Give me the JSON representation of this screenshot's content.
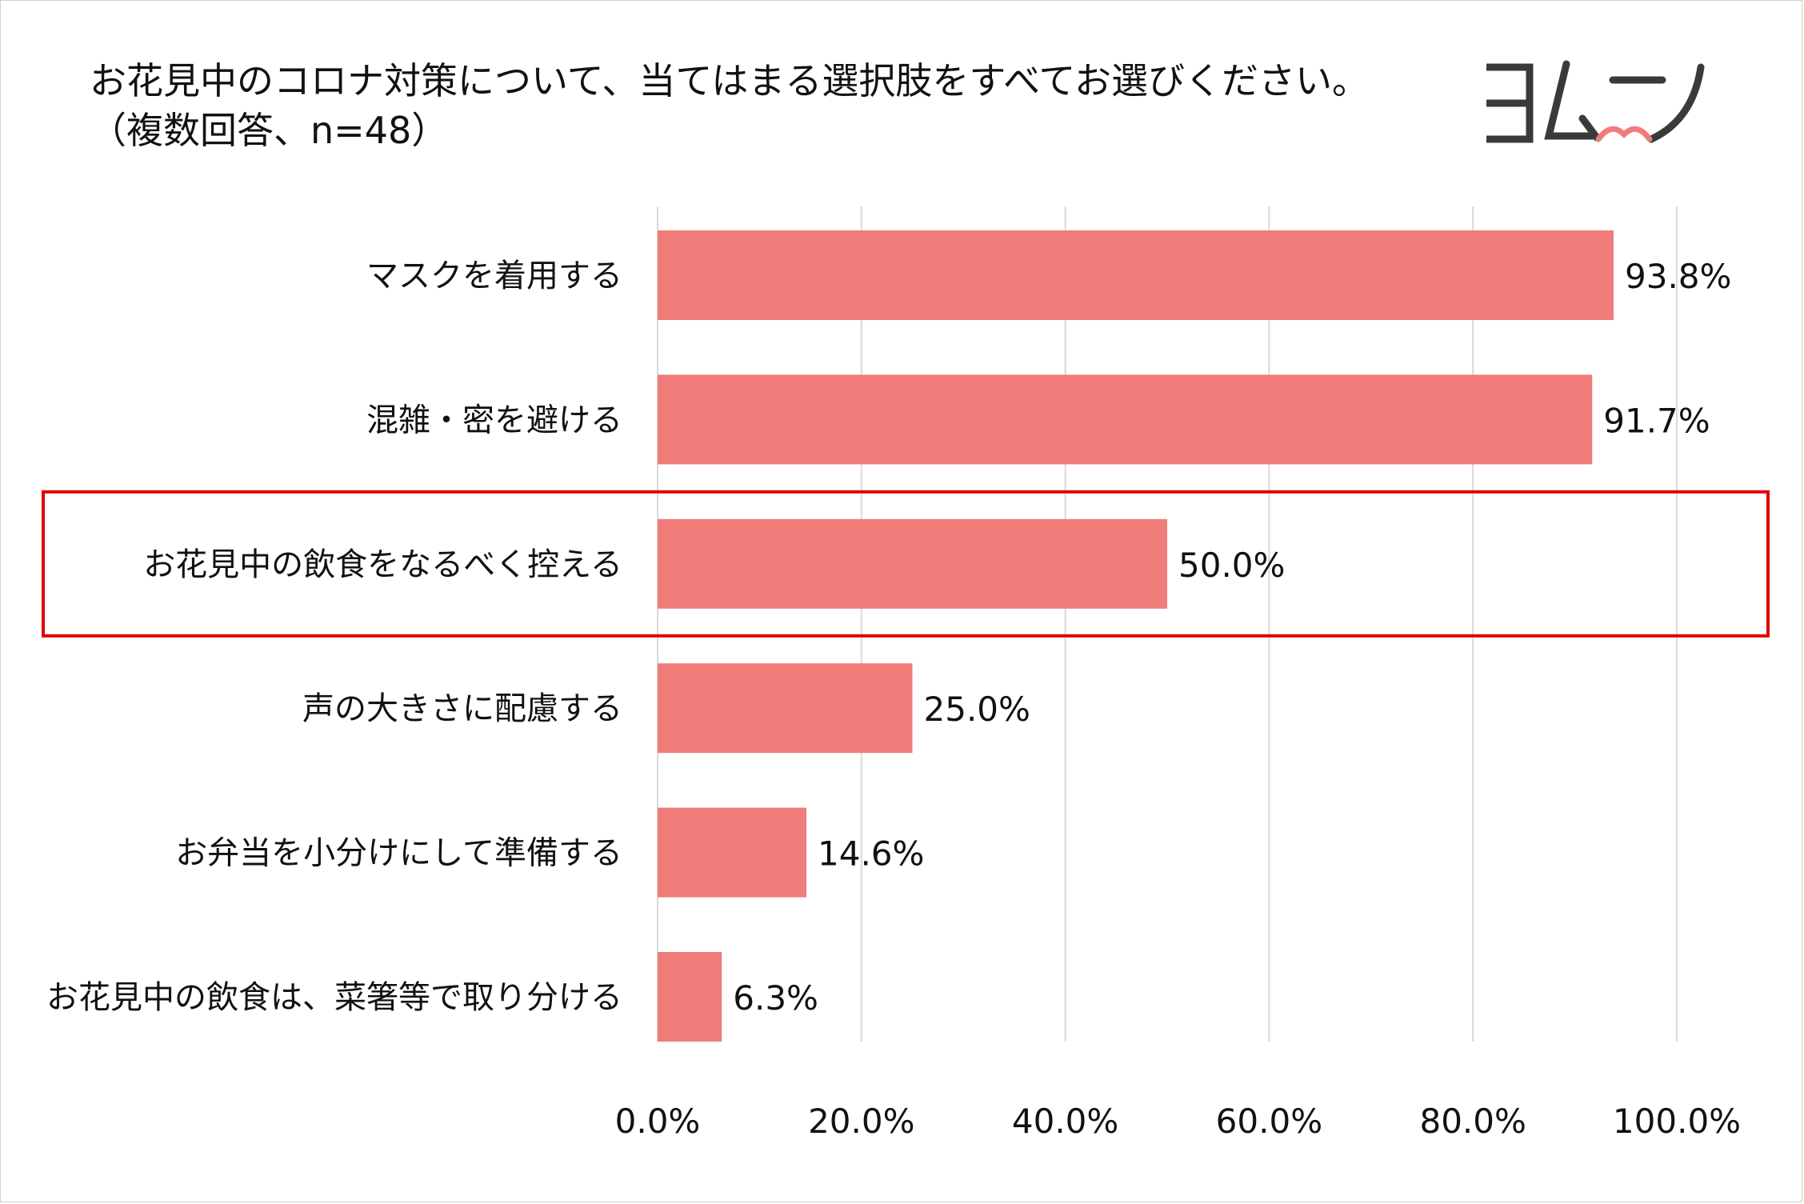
{
  "title_line1": "お花見中のコロナ対策について、当てはまる選択肢をすべてお選びください。",
  "title_line2": "（複数回答、n=48）",
  "logo_text": "ヨムーノ",
  "colors": {
    "bar": "#F07C79",
    "highlight": "#E00000",
    "grid": "#D9D9D9",
    "logo": "#3A3A3A",
    "logo_accent": "#F07C79"
  },
  "chart_data": {
    "type": "bar",
    "orientation": "horizontal",
    "categories": [
      "マスクを着用する",
      "混雑・密を避ける",
      "お花見中の飲食をなるべく控える",
      "声の大きさに配慮する",
      "お弁当を小分けにして準備する",
      "お花見中の飲食は、菜箸等で取り分ける"
    ],
    "values": [
      93.8,
      91.7,
      50.0,
      25.0,
      14.6,
      6.3
    ],
    "value_labels": [
      "93.8%",
      "91.7%",
      "50.0%",
      "25.0%",
      "14.6%",
      "6.3%"
    ],
    "xlim": [
      0,
      100
    ],
    "xticks": [
      0,
      20,
      40,
      60,
      80,
      100
    ],
    "xtick_labels": [
      "0.0%",
      "20.0%",
      "40.0%",
      "60.0%",
      "80.0%",
      "100.0%"
    ],
    "grid": true,
    "highlighted_category_index": 2
  }
}
